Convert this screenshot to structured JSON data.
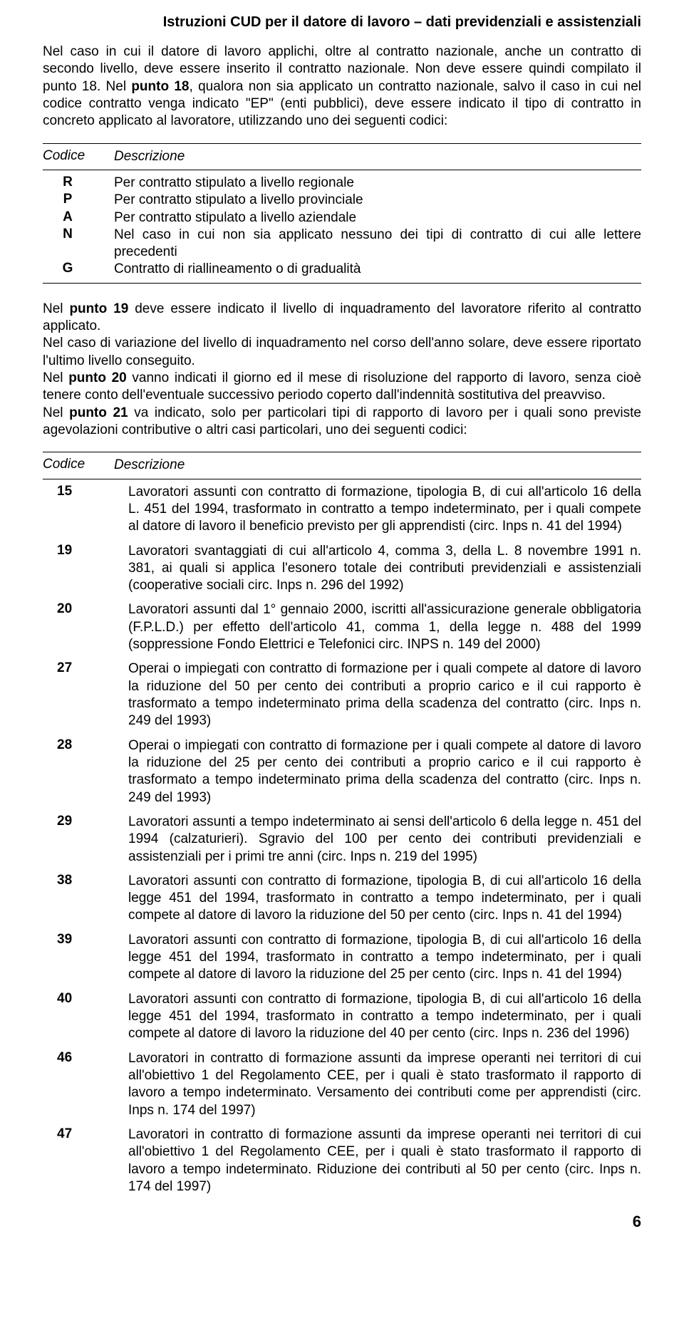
{
  "header": {
    "title": "Istruzioni CUD per il datore di lavoro – dati previdenziali e assistenziali"
  },
  "para1_pre": "Nel caso in cui il datore di lavoro applichi, oltre al contratto nazionale, anche un contratto di secondo livello, deve essere inserito il contratto nazionale. Non deve essere quindi compilato il punto 18.\nNel ",
  "para1_bold": "punto 18",
  "para1_post": ", qualora non sia applicato un contratto nazionale, salvo il caso in cui nel codice contratto venga indicato \"EP\" (enti pubblici), deve essere indicato il tipo di contratto in concreto applicato al lavoratore, utilizzando uno dei seguenti codici:",
  "table1": {
    "head_code": "Codice",
    "head_desc": "Descrizione",
    "rows": [
      {
        "code": "R",
        "desc": "Per contratto stipulato a livello regionale"
      },
      {
        "code": "P",
        "desc": "Per contratto stipulato a livello provinciale"
      },
      {
        "code": "A",
        "desc": "Per contratto stipulato a livello aziendale"
      },
      {
        "code": "N",
        "desc": "Nel caso in cui non sia applicato nessuno dei tipi di contratto di cui alle lettere precedenti"
      },
      {
        "code": "G",
        "desc": "Contratto di riallineamento o di gradualità"
      }
    ]
  },
  "para2_a_pre": "Nel ",
  "para2_a_b": "punto 19",
  "para2_a_post": " deve essere indicato il livello di inquadramento del lavoratore riferito al contratto applicato.",
  "para2_b": "Nel caso di variazione del livello di inquadramento nel corso dell'anno solare, deve essere riportato l'ultimo livello conseguito.",
  "para2_c_pre": "Nel ",
  "para2_c_b": "punto 20",
  "para2_c_post": " vanno indicati il giorno ed il mese di risoluzione del rapporto di lavoro, senza cioè tenere conto dell'eventuale successivo periodo coperto dall'indennità sostitutiva del preavviso.",
  "para2_d_pre": "Nel ",
  "para2_d_b": "punto 21",
  "para2_d_post": " va indicato, solo per particolari tipi di rapporto di lavoro per i quali sono previste agevolazioni contributive o altri casi particolari, uno dei seguenti codici:",
  "table2": {
    "head_code": "Codice",
    "head_desc": "Descrizione",
    "rows": [
      {
        "code": "15",
        "desc": "Lavoratori assunti con contratto di formazione, tipologia B, di cui all'articolo 16 della L. 451 del 1994, trasformato in contratto a tempo indeterminato, per i quali compete al datore di lavoro il beneficio previsto per gli apprendisti (circ. Inps n. 41 del 1994)"
      },
      {
        "code": "19",
        "desc": "Lavoratori svantaggiati di cui all'articolo 4, comma 3, della L. 8 novembre 1991 n. 381, ai quali si applica l'esonero totale dei contributi previdenziali e assistenziali (cooperative sociali circ. Inps n. 296 del 1992)"
      },
      {
        "code": "20",
        "desc": "Lavoratori assunti dal 1° gennaio 2000, iscritti all'assicurazione generale obbligatoria (F.P.L.D.) per effetto dell'articolo 41, comma 1, della legge n. 488 del 1999 (soppressione Fondo Elettrici e Telefonici circ. INPS n. 149 del 2000)"
      },
      {
        "code": "27",
        "desc": "Operai o impiegati con contratto di formazione per i quali compete al datore di lavoro la riduzione del 50 per cento dei contributi a proprio carico e il cui rapporto è trasformato a tempo indeterminato prima della scadenza del contratto (circ. Inps n. 249 del 1993)"
      },
      {
        "code": "28",
        "desc": "Operai o impiegati con contratto di formazione per i quali compete al datore di lavoro la riduzione del 25 per cento dei contributi a proprio carico e il cui rapporto è trasformato a tempo indeterminato prima della scadenza del contratto (circ. Inps n. 249 del 1993)"
      },
      {
        "code": "29",
        "desc": "Lavoratori assunti a tempo indeterminato ai sensi dell'articolo 6 della legge n. 451 del 1994 (calzaturieri). Sgravio del 100 per cento dei contributi previdenziali e assistenziali per i primi tre anni (circ. Inps n. 219 del 1995)"
      },
      {
        "code": "38",
        "desc": "Lavoratori assunti con contratto di formazione, tipologia B, di cui all'articolo 16 della legge 451 del 1994, trasformato in contratto a tempo indeterminato, per i quali compete al datore di lavoro la riduzione del 50 per cento (circ. Inps n. 41 del 1994)"
      },
      {
        "code": "39",
        "desc": "Lavoratori assunti con contratto di formazione, tipologia B, di cui all'articolo 16 della legge 451 del 1994, trasformato in contratto a tempo indeterminato, per i quali compete al datore di lavoro la riduzione del 25 per cento (circ. Inps n. 41 del 1994)"
      },
      {
        "code": "40",
        "desc": "Lavoratori assunti con contratto di formazione, tipologia B, di cui all'articolo 16 della legge 451 del 1994, trasformato in contratto a tempo indeterminato, per i quali compete al datore di lavoro la riduzione del 40 per cento (circ. Inps n. 236 del 1996)"
      },
      {
        "code": "46",
        "desc": "Lavoratori in contratto di formazione assunti da imprese operanti nei territori di cui all'obiettivo 1 del Regolamento CEE, per i quali è stato trasformato il rapporto di lavoro a tempo indeterminato. Versamento dei contributi come per apprendisti (circ. Inps n. 174 del 1997)"
      },
      {
        "code": "47",
        "desc": "Lavoratori in contratto di formazione assunti da imprese operanti nei territori di cui all'obiettivo 1 del Regolamento CEE, per i quali è stato trasformato il rapporto di lavoro a tempo indeterminato. Riduzione dei contributi al 50 per cento (circ. Inps n. 174 del 1997)"
      }
    ]
  },
  "page_number": "6"
}
